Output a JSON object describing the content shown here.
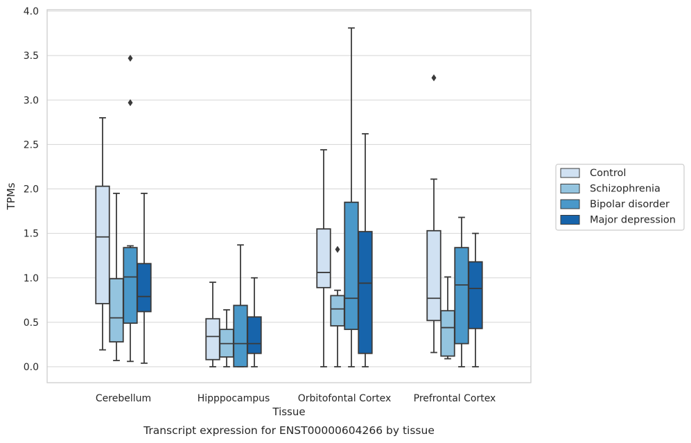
{
  "chart_data": {
    "type": "box",
    "title": "",
    "xlabel": "Tissue",
    "ylabel": "TPMs",
    "caption": "Transcript expression for ENST00000604266 by tissue",
    "ylim": [
      -0.18,
      4.02
    ],
    "yticks": [
      "0.0",
      "0.5",
      "1.0",
      "1.5",
      "2.0",
      "2.5",
      "3.0",
      "3.5",
      "4.0"
    ],
    "categories": [
      "Cerebellum",
      "Hipppocampus",
      "Orbitofontal Cortex",
      "Prefrontal Cortex"
    ],
    "grid": true,
    "legend_position": "right",
    "series": [
      {
        "name": "Control",
        "color": "#d0e1f2",
        "boxes": [
          {
            "whislo": 0.19,
            "q1": 0.71,
            "med": 1.46,
            "q3": 2.03,
            "whishi": 2.8,
            "fliers": []
          },
          {
            "whislo": 0.0,
            "q1": 0.08,
            "med": 0.34,
            "q3": 0.54,
            "whishi": 0.95,
            "fliers": []
          },
          {
            "whislo": 0.0,
            "q1": 0.89,
            "med": 1.06,
            "q3": 1.55,
            "whishi": 2.44,
            "fliers": []
          },
          {
            "whislo": 0.16,
            "q1": 0.52,
            "med": 0.77,
            "q3": 1.53,
            "whishi": 2.11,
            "fliers": [
              3.25
            ]
          }
        ]
      },
      {
        "name": "Schizophrenia",
        "color": "#94c4df",
        "boxes": [
          {
            "whislo": 0.07,
            "q1": 0.28,
            "med": 0.55,
            "q3": 0.99,
            "whishi": 1.95,
            "fliers": []
          },
          {
            "whislo": 0.0,
            "q1": 0.11,
            "med": 0.26,
            "q3": 0.42,
            "whishi": 0.64,
            "fliers": []
          },
          {
            "whislo": 0.0,
            "q1": 0.46,
            "med": 0.65,
            "q3": 0.8,
            "whishi": 0.86,
            "fliers": [
              1.32
            ]
          },
          {
            "whislo": 0.09,
            "q1": 0.12,
            "med": 0.44,
            "q3": 0.63,
            "whishi": 1.01,
            "fliers": []
          }
        ]
      },
      {
        "name": "Bipolar disorder",
        "color": "#4a98c9",
        "boxes": [
          {
            "whislo": 0.06,
            "q1": 0.49,
            "med": 1.01,
            "q3": 1.34,
            "whishi": 1.36,
            "fliers": [
              2.97,
              3.47
            ]
          },
          {
            "whislo": 0.0,
            "q1": 0.0,
            "med": 0.26,
            "q3": 0.69,
            "whishi": 1.37,
            "fliers": []
          },
          {
            "whislo": 0.0,
            "q1": 0.42,
            "med": 0.77,
            "q3": 1.85,
            "whishi": 3.81,
            "fliers": []
          },
          {
            "whislo": 0.0,
            "q1": 0.26,
            "med": 0.92,
            "q3": 1.34,
            "whishi": 1.68,
            "fliers": []
          }
        ]
      },
      {
        "name": "Major depression",
        "color": "#1764ab",
        "boxes": [
          {
            "whislo": 0.04,
            "q1": 0.62,
            "med": 0.79,
            "q3": 1.16,
            "whishi": 1.95,
            "fliers": []
          },
          {
            "whislo": 0.0,
            "q1": 0.15,
            "med": 0.26,
            "q3": 0.56,
            "whishi": 1.0,
            "fliers": []
          },
          {
            "whislo": 0.0,
            "q1": 0.15,
            "med": 0.94,
            "q3": 1.52,
            "whishi": 2.62,
            "fliers": []
          },
          {
            "whislo": 0.0,
            "q1": 0.43,
            "med": 0.88,
            "q3": 1.18,
            "whishi": 1.5,
            "fliers": []
          }
        ]
      }
    ]
  }
}
